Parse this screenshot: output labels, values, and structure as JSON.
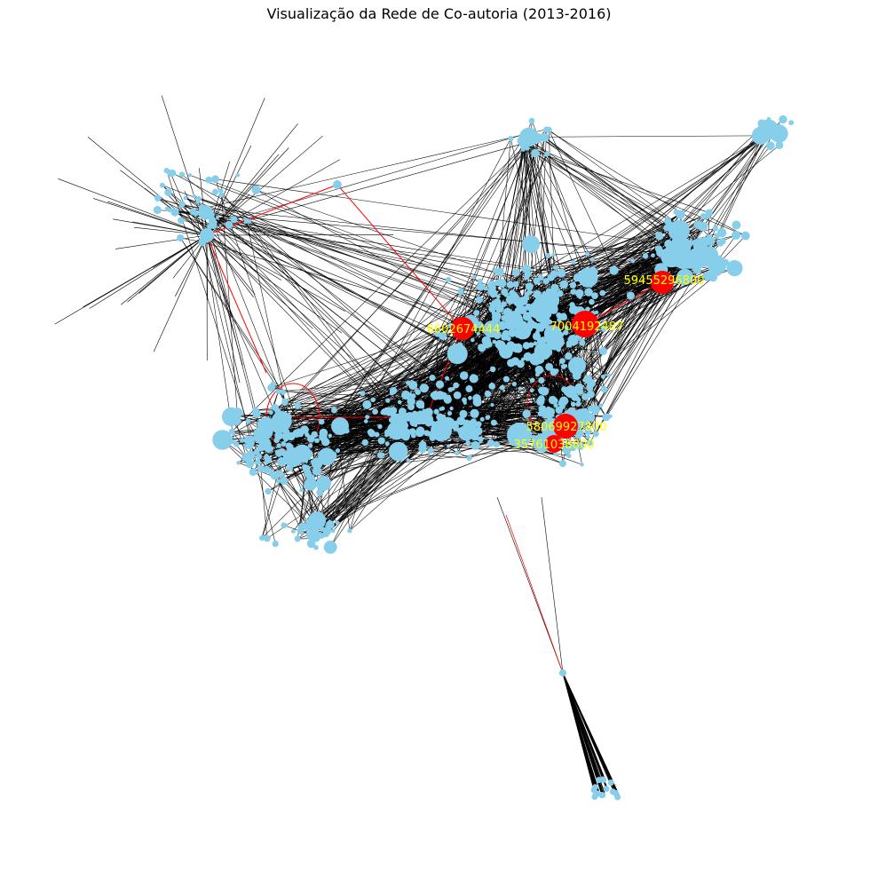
{
  "figure": {
    "title": "Visualização da Rede de Co-autoria (2013-2016)"
  },
  "colors": {
    "node": "#87ceeb",
    "highlight_node": "#ff0000",
    "edge": "#000000",
    "highlight_edge": "#ff0000",
    "label": "#ffff00"
  },
  "highlighted_authors": [
    {
      "id": "59455296800"
    },
    {
      "id": "7004192487"
    },
    {
      "id": "6602674444"
    },
    {
      "id": "58069927800"
    },
    {
      "id": "35761038800"
    }
  ]
}
